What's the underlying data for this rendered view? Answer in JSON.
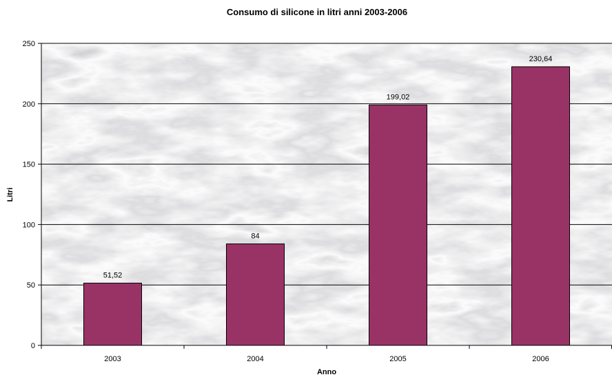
{
  "chart_data": {
    "type": "bar",
    "title": "Consumo di silicone in litri anni 2003-2006",
    "xlabel": "Anno",
    "ylabel": "Litri",
    "categories": [
      "2003",
      "2004",
      "2005",
      "2006"
    ],
    "values": [
      51.52,
      84,
      199.02,
      230.64
    ],
    "data_labels": [
      "51,52",
      "84",
      "199,02",
      "230,64"
    ],
    "ylim": [
      0,
      250
    ],
    "yticks": [
      0,
      50,
      100,
      150,
      200,
      250
    ],
    "grid": true,
    "legend": "none",
    "colors": {
      "bar": "#993366",
      "bar_outline": "#000000",
      "gridline": "#000000",
      "plot_background": "marble-texture"
    }
  }
}
